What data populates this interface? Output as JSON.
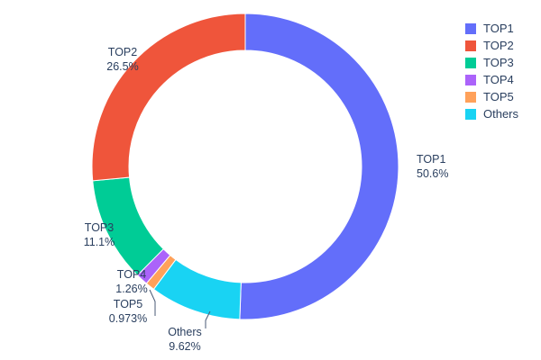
{
  "chart_data": {
    "type": "pie",
    "subtype": "donut",
    "hole": 0.76,
    "title": "",
    "labels": [
      "TOP1",
      "TOP2",
      "TOP3",
      "TOP4",
      "TOP5",
      "Others"
    ],
    "values": [
      50.6,
      26.5,
      11.1,
      1.26,
      0.973,
      9.62
    ],
    "pct_labels": [
      "50.6%",
      "26.5%",
      "11.1%",
      "1.26%",
      "0.973%",
      "9.62%"
    ],
    "colors": [
      "#636EFA",
      "#EF553B",
      "#00CC96",
      "#AB63FA",
      "#FFA15A",
      "#19D3F3"
    ],
    "slice_order_clockwise": [
      "TOP1",
      "Others",
      "TOP5",
      "TOP4",
      "TOP3",
      "TOP2"
    ],
    "start_angle_deg": 0,
    "legend": {
      "position": "top-right",
      "entries": [
        "TOP1",
        "TOP2",
        "TOP3",
        "TOP4",
        "TOP5",
        "Others"
      ]
    },
    "text_color": "#2a3f5f",
    "background": "#ffffff",
    "labels_position": "outside"
  }
}
